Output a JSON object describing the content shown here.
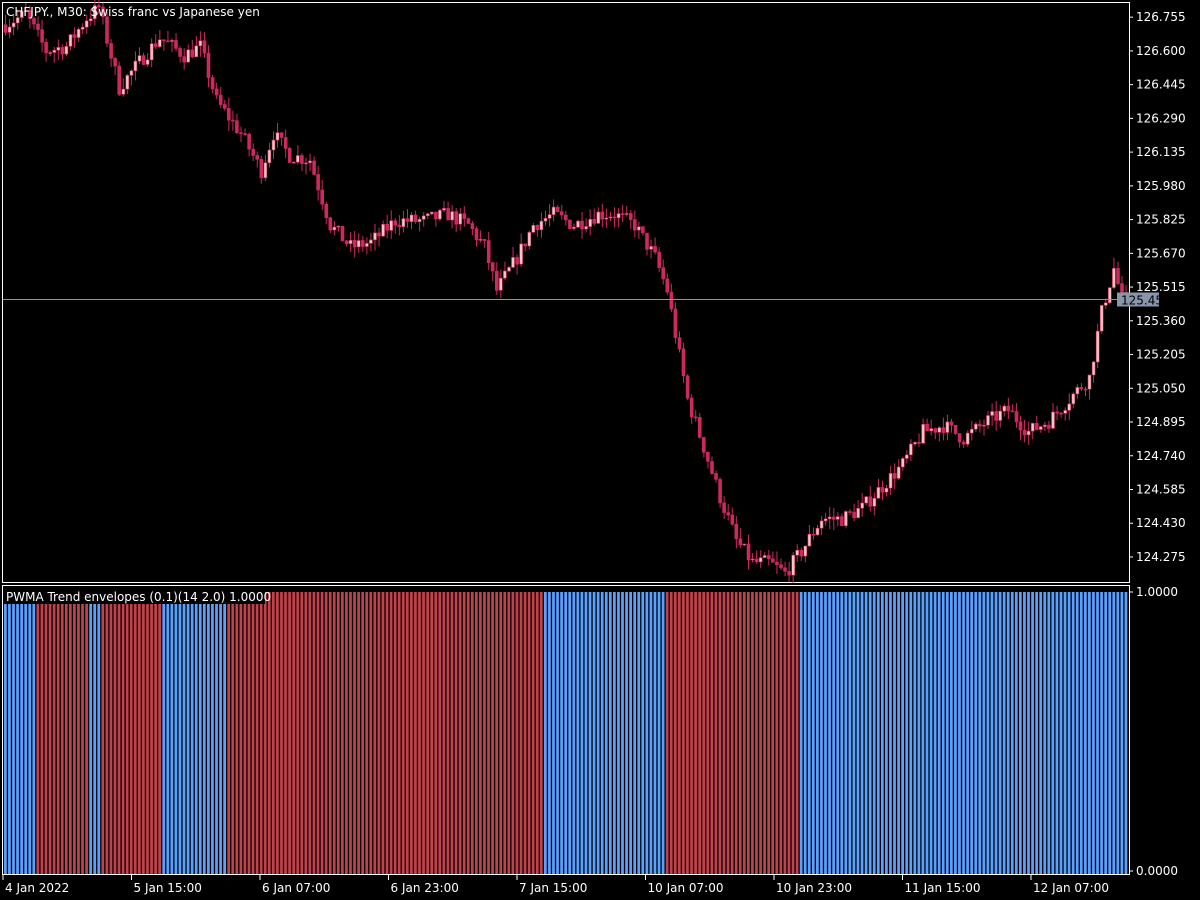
{
  "window": {
    "symbol_title": "CHFJPY., M30:  Swiss franc vs Japanese yen"
  },
  "indicator": {
    "title": "PWMA Trend envelopes (0.1)(14 2.0) 1.0000"
  },
  "colors": {
    "background": "#000000",
    "frame": "#ffffff",
    "candle_body": "#f4c7c3",
    "candle_wick": "#cc2a5c",
    "bear_candle": "#cc2a5c",
    "accent_green": "#2fbf2f",
    "current_price_line": "#8796aa",
    "current_price_tag": "#8796aa",
    "trend_up": "#5aa0ff",
    "trend_down": "#c0424c"
  },
  "chart_data": {
    "type": "candlestick",
    "instrument": "CHFJPY.",
    "timeframe": "M30",
    "y_axis_ticks": [
      "126.755",
      "126.600",
      "126.445",
      "126.290",
      "126.135",
      "125.980",
      "125.825",
      "125.670",
      "125.515",
      "125.360",
      "125.205",
      "125.050",
      "124.895",
      "124.740",
      "124.585",
      "124.430",
      "124.275"
    ],
    "ylim": [
      124.16,
      126.82
    ],
    "current_price": "125.458",
    "x_axis_ticks": [
      "4 Jan 2022",
      "5 Jan 15:00",
      "6 Jan 07:00",
      "6 Jan 23:00",
      "7 Jan 15:00",
      "10 Jan 07:00",
      "10 Jan 23:00",
      "11 Jan 15:00",
      "12 Jan 07:00"
    ],
    "close_path": [
      [
        0,
        126.72
      ],
      [
        5,
        126.77
      ],
      [
        10,
        126.6
      ],
      [
        15,
        126.62
      ],
      [
        20,
        126.75
      ],
      [
        23,
        126.8
      ],
      [
        28,
        126.43
      ],
      [
        33,
        126.55
      ],
      [
        38,
        126.66
      ],
      [
        44,
        126.58
      ],
      [
        48,
        126.62
      ],
      [
        52,
        126.37
      ],
      [
        58,
        126.22
      ],
      [
        63,
        126.05
      ],
      [
        66,
        126.22
      ],
      [
        70,
        126.12
      ],
      [
        75,
        126.1
      ],
      [
        80,
        125.8
      ],
      [
        85,
        125.7
      ],
      [
        90,
        125.72
      ],
      [
        96,
        125.82
      ],
      [
        103,
        125.82
      ],
      [
        109,
        125.85
      ],
      [
        114,
        125.8
      ],
      [
        118,
        125.7
      ],
      [
        121,
        125.5
      ],
      [
        126,
        125.65
      ],
      [
        130,
        125.8
      ],
      [
        135,
        125.85
      ],
      [
        140,
        125.8
      ],
      [
        146,
        125.85
      ],
      [
        150,
        125.85
      ],
      [
        155,
        125.8
      ],
      [
        160,
        125.65
      ],
      [
        163,
        125.5
      ],
      [
        165,
        125.3
      ],
      [
        168,
        125.0
      ],
      [
        172,
        124.78
      ],
      [
        176,
        124.55
      ],
      [
        180,
        124.35
      ],
      [
        184,
        124.25
      ],
      [
        188,
        124.25
      ],
      [
        192,
        124.2
      ],
      [
        196,
        124.3
      ],
      [
        201,
        124.45
      ],
      [
        206,
        124.45
      ],
      [
        211,
        124.5
      ],
      [
        216,
        124.6
      ],
      [
        221,
        124.7
      ],
      [
        226,
        124.85
      ],
      [
        231,
        124.88
      ],
      [
        236,
        124.82
      ],
      [
        242,
        124.9
      ],
      [
        247,
        124.95
      ],
      [
        252,
        124.85
      ],
      [
        257,
        124.9
      ],
      [
        262,
        125.0
      ],
      [
        267,
        125.1
      ],
      [
        270,
        125.4
      ],
      [
        273,
        125.6
      ],
      [
        275,
        125.46
      ]
    ],
    "trend_segments": [
      {
        "state": "up",
        "value": 1.0,
        "bars": 8
      },
      {
        "state": "down",
        "value": 1.0,
        "bars": 13
      },
      {
        "state": "up",
        "value": 1.0,
        "bars": 3
      },
      {
        "state": "down",
        "value": 1.0,
        "bars": 15
      },
      {
        "state": "up",
        "value": 1.0,
        "bars": 16
      },
      {
        "state": "down",
        "value": 1.0,
        "bars": 78
      },
      {
        "state": "up",
        "value": 1.0,
        "bars": 30
      },
      {
        "state": "down",
        "value": 1.0,
        "bars": 33
      },
      {
        "state": "up",
        "value": 1.0,
        "bars": 81
      }
    ],
    "indicator_y_ticks": [
      "1.0000",
      "0.0000"
    ],
    "indicator_ylim": [
      0,
      1
    ]
  }
}
